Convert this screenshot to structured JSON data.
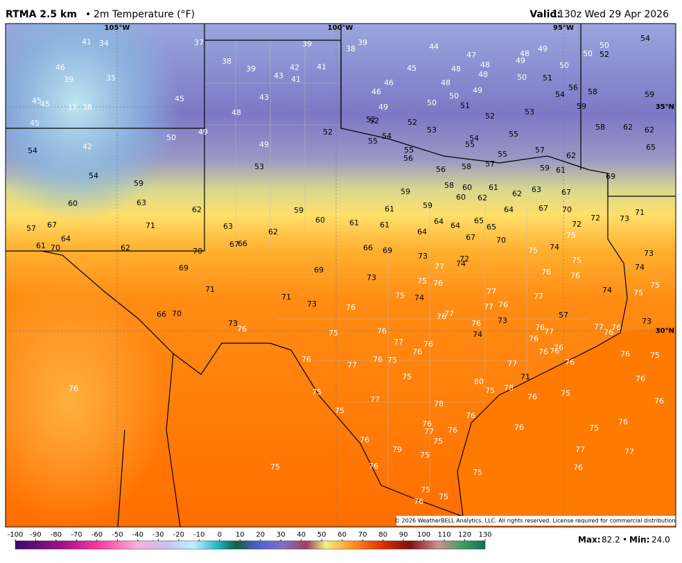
{
  "header": {
    "product": "RTMA 2.5 km",
    "separator": "•",
    "field": "2m Temperature (°F)",
    "valid_label": "Valid:",
    "valid_time": "1130z Wed 29 Apr 2026"
  },
  "longitudes": [
    "105°W",
    "100°W",
    "95°W"
  ],
  "latitudes": [
    "35°N",
    "30°N"
  ],
  "stations": [
    41,
    34,
    37,
    39,
    38,
    39,
    44,
    47,
    48,
    49,
    50,
    54,
    50,
    52,
    46,
    39,
    35,
    38,
    39,
    43,
    42,
    41,
    41,
    45,
    48,
    48,
    48,
    49,
    50,
    50,
    51,
    48,
    46,
    46,
    49,
    50,
    56,
    54,
    58,
    59,
    45,
    45,
    37,
    38,
    45,
    43,
    50,
    51,
    49,
    52,
    53,
    59,
    48,
    52,
    52,
    52,
    53,
    45,
    49,
    50,
    52,
    54,
    54,
    55,
    58,
    62,
    62,
    55,
    55,
    55,
    55,
    57,
    62,
    65,
    54,
    42,
    49,
    56,
    56,
    58,
    57,
    59,
    61,
    69,
    54,
    53,
    59,
    58,
    60,
    61,
    59,
    60,
    62,
    62,
    63,
    67,
    60,
    63,
    62,
    59,
    61,
    59,
    64,
    67,
    70,
    72,
    73,
    71,
    57,
    67,
    71,
    63,
    62,
    60,
    61,
    61,
    64,
    64,
    64,
    65,
    65,
    72,
    75,
    64,
    61,
    70,
    62,
    67,
    66,
    70,
    66,
    69,
    67,
    70,
    75,
    74,
    73,
    72,
    77,
    74,
    75,
    73,
    69,
    69,
    73,
    76,
    76,
    74,
    75,
    76,
    71,
    71,
    75,
    74,
    77,
    77,
    74,
    75,
    75,
    73,
    76,
    77,
    76,
    77,
    76,
    76,
    73,
    57,
    66,
    70,
    73,
    76,
    76,
    77,
    77,
    76,
    76,
    73,
    75,
    76,
    74,
    76,
    77,
    76,
    76,
    76,
    76,
    76,
    76,
    76,
    77,
    76,
    75,
    77,
    76,
    75,
    75,
    71,
    80,
    76,
    76,
    75,
    75,
    78,
    76,
    75,
    77,
    78,
    76,
    75,
    76,
    76,
    76,
    76,
    77,
    75,
    75,
    76,
    76,
    79,
    75,
    77,
    77,
    75,
    76,
    76,
    75,
    75,
    75,
    76
  ],
  "colorbar": {
    "ticks": [
      -100,
      -90,
      -80,
      -70,
      -60,
      -50,
      -40,
      -30,
      -20,
      -10,
      0,
      10,
      20,
      30,
      40,
      50,
      60,
      70,
      80,
      90,
      100,
      110,
      120,
      130
    ]
  },
  "footer": {
    "max_label": "Max:",
    "max_value": "82.2",
    "separator": "•",
    "min_label": "Min:",
    "min_value": "24.0"
  },
  "copyright": "© 2026 WeatherBELL Analytics, LLC. All rights reserved. License required for commercial distribution."
}
